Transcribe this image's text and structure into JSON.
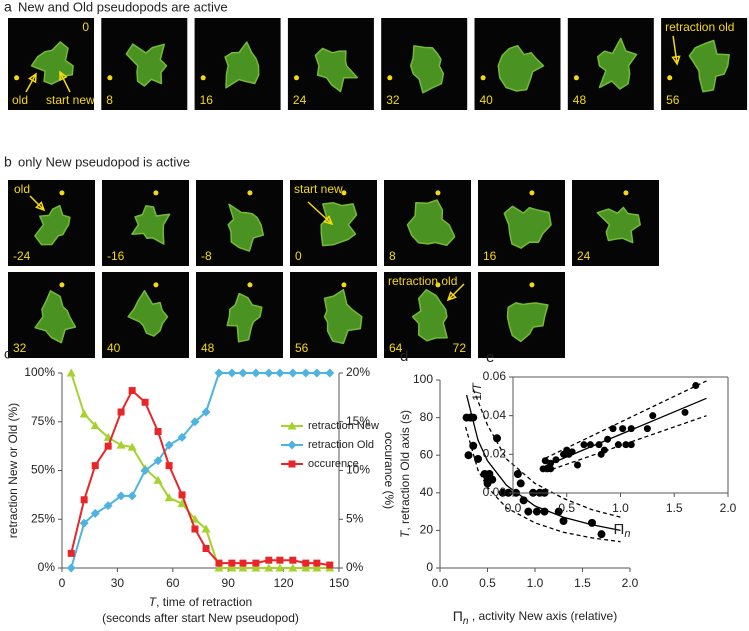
{
  "panels": {
    "a": {
      "letter": "a",
      "title": "New and Old pseudopods are active",
      "frames": [
        [
          "0"
        ],
        [
          "8"
        ],
        [
          "16"
        ],
        [
          "24"
        ],
        [
          "32"
        ],
        [
          "40"
        ],
        [
          "48"
        ],
        [
          "56"
        ]
      ],
      "labels": {
        "old": "old",
        "start_new": "start new",
        "retraction_old": "retraction old"
      }
    },
    "b": {
      "letter": "b",
      "title": "only New pseudopod is active",
      "frames": [
        [
          "-24"
        ],
        [
          "-16"
        ],
        [
          "-8"
        ],
        [
          "0"
        ],
        [
          "8"
        ],
        [
          "16"
        ],
        [
          "24"
        ],
        [
          "32"
        ],
        [
          "40"
        ],
        [
          "48"
        ],
        [
          "56"
        ],
        [
          "64",
          "72"
        ],
        []
      ],
      "labels": {
        "old": "old",
        "start_new": "start new",
        "retraction_old": "retraction old"
      }
    }
  },
  "chart_data": [
    {
      "type": "line",
      "panel": "c",
      "xlabel_var": "T",
      "xlabel": ", time of retraction",
      "xlabel_note": "(seconds after start New pseudopod)",
      "ylabel": "retraction New or Old (%)",
      "y2label": "occurance (%)",
      "x": [
        5,
        12,
        18,
        25,
        32,
        38,
        45,
        52,
        58,
        65,
        72,
        78,
        85,
        92,
        98,
        105,
        112,
        118,
        125,
        132,
        138,
        145
      ],
      "xlim": [
        0,
        150
      ],
      "xticks": [
        0,
        30,
        60,
        90,
        120,
        150
      ],
      "ylim": [
        0,
        100
      ],
      "yticks": [
        {
          "value": 0,
          "label": "0%"
        },
        {
          "value": 25,
          "label": "25%"
        },
        {
          "value": 50,
          "label": "50%"
        },
        {
          "value": 75,
          "label": "75%"
        },
        {
          "value": 100,
          "label": "100%"
        }
      ],
      "y2lim": [
        0,
        20
      ],
      "y2ticks": [
        {
          "value": 0,
          "label": "0%"
        },
        {
          "value": 5,
          "label": "5%"
        },
        {
          "value": 10,
          "label": "10%"
        },
        {
          "value": 15,
          "label": "15%"
        },
        {
          "value": 20,
          "label": "20%"
        }
      ],
      "legend": "right",
      "series": [
        {
          "name": "retraction New",
          "color": "#a6d12e",
          "marker": "triangle",
          "line": "solid",
          "values": [
            100,
            79,
            73,
            67,
            63,
            62,
            51,
            45,
            36,
            33,
            25,
            20,
            0,
            0,
            0,
            0,
            0,
            0,
            0,
            0,
            0,
            0
          ]
        },
        {
          "name": "retraction Old",
          "color": "#4fb3e0",
          "marker": "diamond",
          "line": "solid",
          "values": [
            0,
            23,
            28,
            32,
            37,
            37,
            50,
            55,
            63,
            67,
            75,
            80,
            100,
            100,
            100,
            100,
            100,
            100,
            100,
            100,
            100,
            100
          ]
        },
        {
          "name": "occurence",
          "color": "#e8262a",
          "marker": "square",
          "line": "solid",
          "axis": "y2",
          "values": [
            1.5,
            7,
            10.5,
            12.5,
            16,
            18.2,
            17,
            14,
            10.5,
            7.5,
            4,
            2,
            0.5,
            0.5,
            0.5,
            0.5,
            0.8,
            0.8,
            0.8,
            0.5,
            0.5,
            0.3
          ]
        }
      ]
    },
    {
      "type": "scatter",
      "panel": "d",
      "ylabel_var": "T",
      "ylabel": ", retraction Old axis (s)",
      "xlabel_symbol": "Π",
      "xlabel_sub": "n",
      "xlabel": " , activity New axis (relative)",
      "xlim": [
        0,
        2
      ],
      "xticks": [
        {
          "value": 0,
          "label": "0.0"
        },
        {
          "value": 0.5,
          "label": "0.5"
        },
        {
          "value": 1,
          "label": "1.0"
        },
        {
          "value": 1.5,
          "label": "1.5"
        },
        {
          "value": 2,
          "label": "2.0"
        }
      ],
      "ylim": [
        0,
        100
      ],
      "yticks": [
        0,
        20,
        40,
        60,
        80,
        100
      ],
      "series": [
        {
          "color": "#000000",
          "marker": "circle",
          "x": [
            0.28,
            0.32,
            0.35,
            0.3,
            0.35,
            0.4,
            0.47,
            0.5,
            0.52,
            0.55,
            0.5,
            0.6,
            0.66,
            0.72,
            0.8,
            0.82,
            0.85,
            0.88,
            0.93,
            0.98,
            1.02,
            1.05,
            1.1,
            1.1,
            1.25,
            1.3,
            1.6,
            1.7
          ],
          "values": [
            80,
            80,
            80,
            60,
            65,
            58,
            50,
            48,
            50,
            47,
            45,
            69,
            40,
            40,
            40,
            50,
            45,
            36,
            30,
            40,
            30,
            40,
            40,
            30,
            30,
            25,
            24,
            18
          ]
        },
        {
          "color": "#000000",
          "line": "solid",
          "x": [
            0.28,
            0.4,
            0.5,
            0.7,
            1,
            1.3,
            1.6,
            1.9
          ],
          "values": [
            92,
            68,
            57,
            44,
            33,
            27,
            23,
            20
          ]
        },
        {
          "color": "#000000",
          "line": "dashed",
          "x": [
            0.35,
            0.5,
            0.7,
            1,
            1.3,
            1.6,
            1.9
          ],
          "values": [
            95,
            76,
            58,
            45,
            37,
            31,
            27
          ]
        },
        {
          "color": "#000000",
          "line": "dashed",
          "x": [
            0.27,
            0.4,
            0.5,
            0.7,
            1,
            1.3,
            1.6,
            1.9
          ],
          "values": [
            75,
            52,
            43,
            32,
            24,
            19,
            16,
            14
          ]
        }
      ]
    },
    {
      "type": "scatter",
      "panel": "e",
      "ylabel": "1/",
      "ylabel_var": "T",
      "xlabel_symbol": "Π",
      "xlabel_sub": "n",
      "xlim": [
        0,
        2
      ],
      "xticks": [
        {
          "value": 0,
          "label": "0.0"
        },
        {
          "value": 0.5,
          "label": "0.5"
        },
        {
          "value": 1,
          "label": "1.0"
        },
        {
          "value": 1.5,
          "label": "1.5"
        },
        {
          "value": 2,
          "label": "2.0"
        }
      ],
      "ylim": [
        0,
        0.06
      ],
      "yticks": [
        {
          "value": 0,
          "label": "0.00"
        },
        {
          "value": 0.02,
          "label": "0.02"
        },
        {
          "value": 0.04,
          "label": "0.04"
        },
        {
          "value": 0.06,
          "label": "0.06"
        }
      ],
      "series": [
        {
          "color": "#000000",
          "marker": "circle",
          "x": [
            0.28,
            0.32,
            0.35,
            0.3,
            0.35,
            0.4,
            0.47,
            0.5,
            0.52,
            0.55,
            0.5,
            0.6,
            0.66,
            0.72,
            0.8,
            0.82,
            0.85,
            0.88,
            0.93,
            0.98,
            1.02,
            1.05,
            1.1,
            1.1,
            1.25,
            1.3,
            1.6,
            1.7
          ],
          "values": [
            0.0125,
            0.0125,
            0.0125,
            0.0167,
            0.0154,
            0.0172,
            0.02,
            0.0208,
            0.02,
            0.0213,
            0.0222,
            0.0145,
            0.025,
            0.025,
            0.025,
            0.02,
            0.0222,
            0.0278,
            0.0333,
            0.025,
            0.0333,
            0.025,
            0.025,
            0.0333,
            0.0333,
            0.04,
            0.0417,
            0.0556
          ]
        },
        {
          "color": "#000000",
          "line": "solid",
          "x": [
            0.3,
            1.8
          ],
          "values": [
            0.014,
            0.049
          ]
        },
        {
          "color": "#000000",
          "line": "dashed",
          "x": [
            0.3,
            1.8
          ],
          "values": [
            0.018,
            0.058
          ]
        },
        {
          "color": "#000000",
          "line": "dashed",
          "x": [
            0.3,
            1.8
          ],
          "values": [
            0.011,
            0.04
          ]
        }
      ]
    }
  ]
}
